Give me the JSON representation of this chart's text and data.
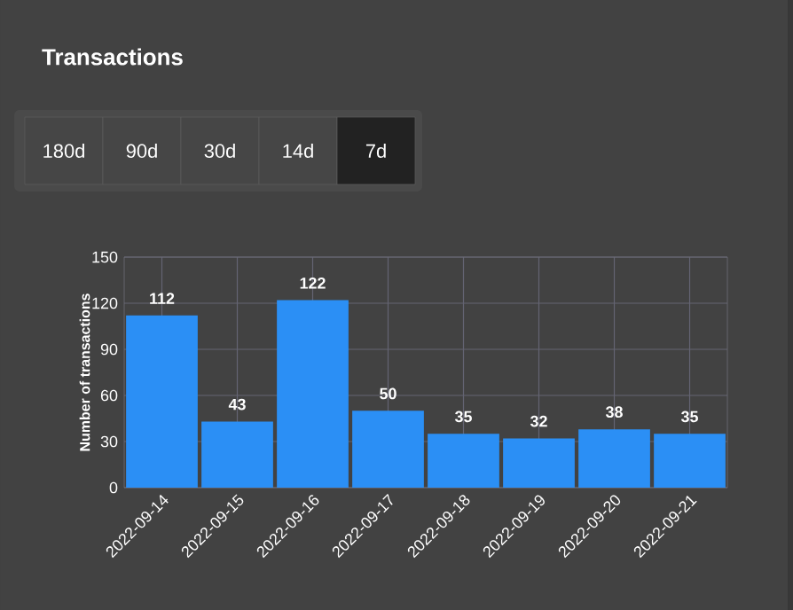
{
  "chart_data": {
    "type": "bar",
    "title": "Transactions",
    "ylabel": "Number of transactions",
    "categories": [
      "2022-09-14",
      "2022-09-15",
      "2022-09-16",
      "2022-09-17",
      "2022-09-18",
      "2022-09-19",
      "2022-09-20",
      "2022-09-21"
    ],
    "values": [
      112,
      43,
      122,
      50,
      35,
      32,
      38,
      35
    ],
    "color": "#2b8ff5",
    "ylim": [
      0,
      150
    ],
    "yticks": [
      0,
      30,
      60,
      90,
      120,
      150
    ],
    "grid": true,
    "data_labels": true,
    "annotations": [
      "180d",
      "90d",
      "30d",
      "14d",
      "7d"
    ]
  }
}
